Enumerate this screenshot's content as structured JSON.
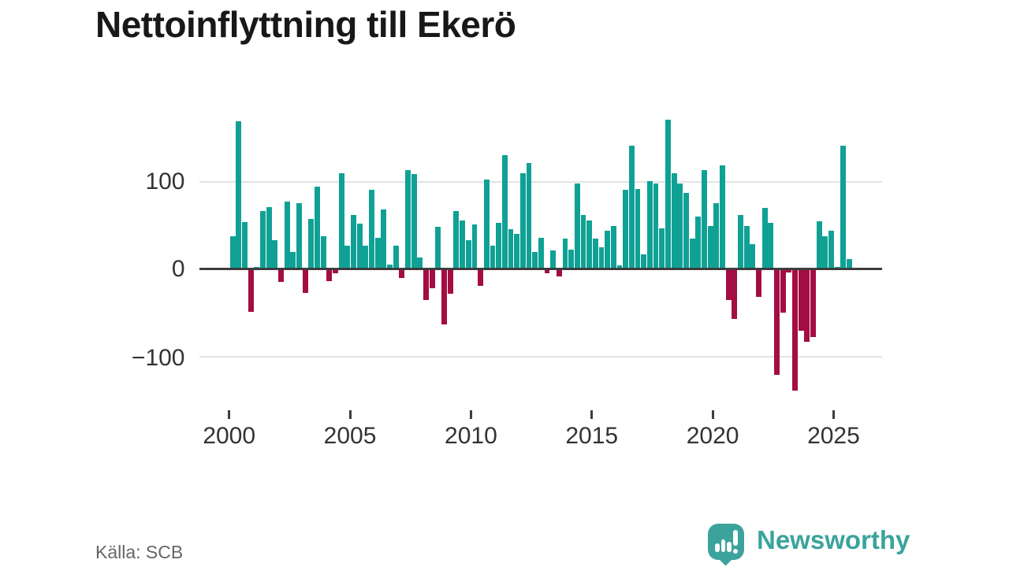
{
  "title": "Nettoinflyttning till Ekerö",
  "source": "Källa: SCB",
  "brand": {
    "name": "Newsworthy",
    "color": "#3ba39c",
    "icon": "newsworthy-speech-bubble-bar-chart-icon"
  },
  "colors": {
    "positive_bar": "#10a195",
    "negative_bar": "#a40d43",
    "zero_axis": "#3d3d3d",
    "gridline": "#e3e3e3",
    "tick_text": "#333333",
    "title_text": "#181818",
    "source_text": "#65656b"
  },
  "chart_data": {
    "type": "bar",
    "title": "Nettoinflyttning till Ekerö",
    "xlabel": "",
    "ylabel": "",
    "x_unit": "quarter",
    "start_period": "2000Q1",
    "end_period": "2025Q3",
    "x_tick_years": [
      2000,
      2005,
      2010,
      2015,
      2020,
      2025
    ],
    "x_tick_labels": [
      "2000",
      "2005",
      "2010",
      "2015",
      "2020",
      "2025"
    ],
    "y_ticks": [
      100,
      0,
      -100
    ],
    "y_tick_labels": [
      "100",
      "0",
      "−100"
    ],
    "ylim": [
      -155,
      180
    ],
    "grid": "horizontal gridlines at 100 and -100, dark zero line",
    "legend": "none",
    "values": [
      38,
      169,
      54,
      -49,
      2,
      66,
      71,
      33,
      -15,
      77,
      20,
      75,
      -27,
      57,
      94,
      38,
      -14,
      -5,
      110,
      27,
      62,
      52,
      27,
      91,
      36,
      68,
      5,
      27,
      -10,
      113,
      109,
      13,
      -35,
      -22,
      48,
      -63,
      -28,
      66,
      56,
      33,
      51,
      -19,
      102,
      27,
      53,
      130,
      46,
      40,
      110,
      121,
      20,
      36,
      -5,
      21,
      -8,
      35,
      22,
      98,
      62,
      56,
      35,
      25,
      44,
      49,
      4,
      91,
      141,
      92,
      17,
      101,
      98,
      47,
      171,
      110,
      98,
      87,
      35,
      60,
      113,
      49,
      75,
      119,
      -35,
      -57,
      62,
      49,
      29,
      -32,
      70,
      53,
      -121,
      -50,
      -4,
      -139,
      -71,
      -83,
      -78,
      55,
      38,
      44,
      2,
      141,
      11
    ]
  }
}
